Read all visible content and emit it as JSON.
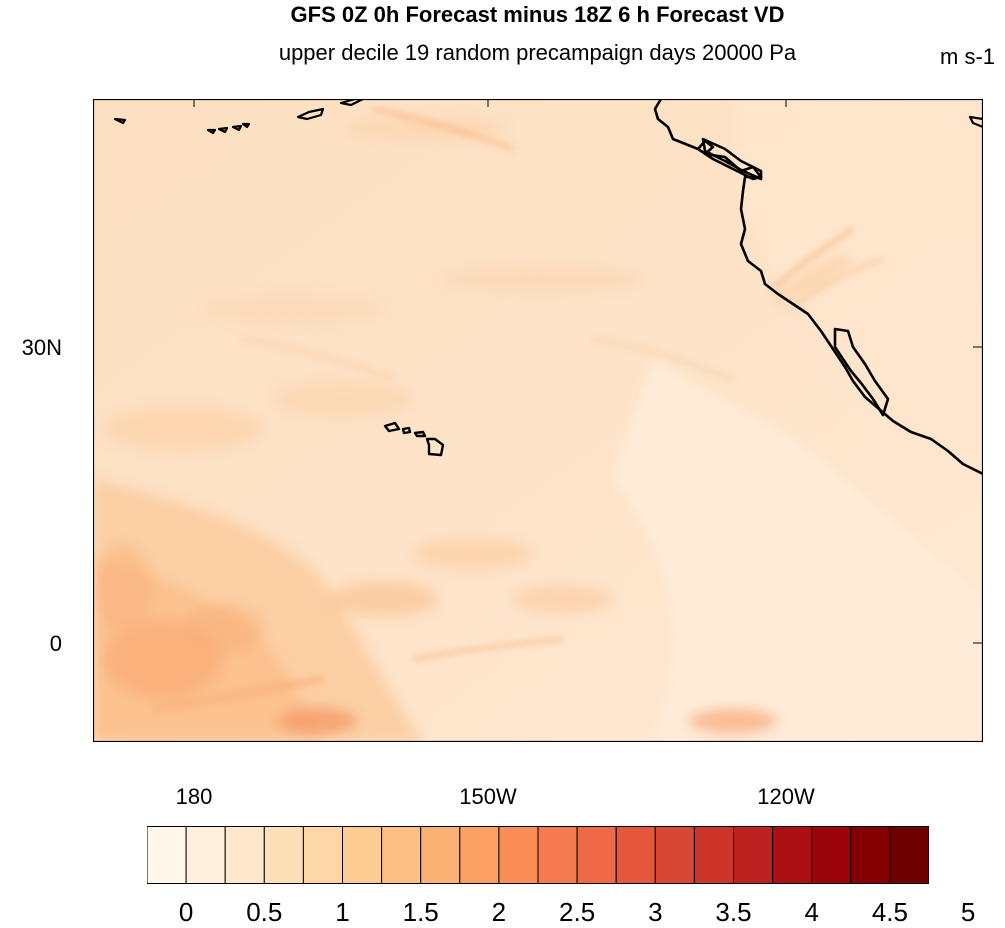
{
  "header": {
    "title": "GFS 0Z 0h Forecast minus 18Z 6 h Forecast VD",
    "subtitle": "upper decile 19 random precampaign days 20000 Pa",
    "units": "m s-1"
  },
  "map": {
    "projection": "cylindrical equidistant",
    "lon_range": [
      "170E",
      "110W"
    ],
    "lat_range": [
      "10S",
      "55N"
    ],
    "lat_labels": [
      {
        "text": "30N",
        "lat": 30
      },
      {
        "text": "0",
        "lat": 0
      }
    ],
    "lon_labels": [
      {
        "text": "180",
        "lon": 180
      },
      {
        "text": "150W",
        "lon": -150
      },
      {
        "text": "120W",
        "lon": -120
      }
    ],
    "field_summary": "wind speed difference mostly 0.5–2 m s-1, higher (2–3) in the southwest tropics",
    "colors": {
      "background_field": "#fde2c6",
      "coastline": "#000000"
    }
  },
  "colorbar": {
    "labels": [
      "0",
      "0.5",
      "1",
      "1.5",
      "2",
      "2.5",
      "3",
      "3.5",
      "4",
      "4.5",
      "5"
    ],
    "colors": [
      "#fff7ec",
      "#fff0dd",
      "#fee8cb",
      "#fee0b8",
      "#fdd7a6",
      "#fdcd93",
      "#fdbf83",
      "#fcb174",
      "#fca064",
      "#fb8d59",
      "#f57b4f",
      "#ee6a46",
      "#e4573d",
      "#d84634",
      "#cb352a",
      "#bd2220",
      "#ad1014",
      "#9b040b",
      "#850000",
      "#700000"
    ]
  }
}
